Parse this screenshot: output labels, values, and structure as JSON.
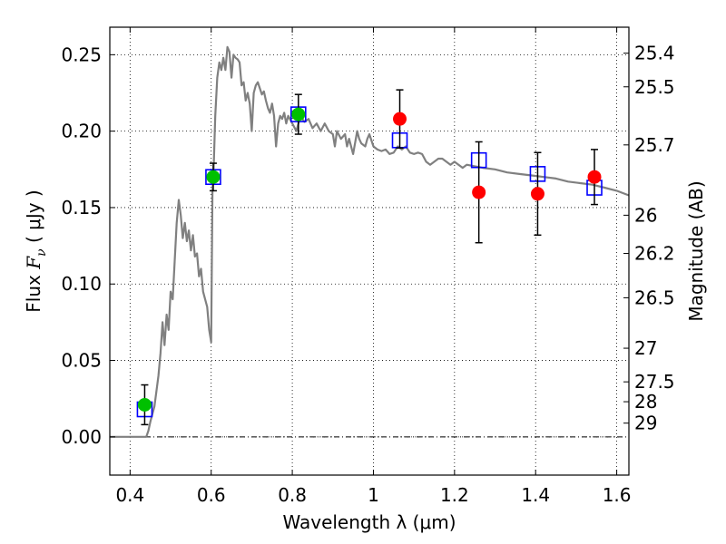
{
  "chart_data": {
    "type": "scatter",
    "xlabel": "Wavelength  λ (μm)",
    "ylabel_left": "Flux  F_ν  ( μJy )",
    "ylabel_left_parts": {
      "prefix": "Flux  ",
      "symbol": "F",
      "subscript": "ν",
      "units": "  ( μJy )"
    },
    "ylabel_right": "Magnitude (AB)",
    "xlim": [
      0.35,
      1.63
    ],
    "ylim": [
      -0.025,
      0.268
    ],
    "x_ticks": [
      "0.4",
      "0.6",
      "0.8",
      "1",
      "1.2",
      "1.4",
      "1.6"
    ],
    "x_tick_values": [
      0.4,
      0.6,
      0.8,
      1.0,
      1.2,
      1.4,
      1.6
    ],
    "y_ticks": [
      "0.00",
      "0.05",
      "0.10",
      "0.15",
      "0.20",
      "0.25"
    ],
    "y_tick_values": [
      0.0,
      0.05,
      0.1,
      0.15,
      0.2,
      0.25
    ],
    "right_axis_ticks": [
      {
        "label": "25.4",
        "flux": 0.251
      },
      {
        "label": "25.5",
        "flux": 0.229
      },
      {
        "label": "25.7",
        "flux": 0.191
      },
      {
        "label": "26",
        "flux": 0.145
      },
      {
        "label": "26.2",
        "flux": 0.12
      },
      {
        "label": "26.5",
        "flux": 0.091
      },
      {
        "label": "27",
        "flux": 0.058
      },
      {
        "label": "27.5",
        "flux": 0.036
      },
      {
        "label": "28",
        "flux": 0.023
      },
      {
        "label": "29",
        "flux": 0.009
      }
    ],
    "grid": true,
    "zero_line": true,
    "series": [
      {
        "kind": "line",
        "color": "#808080",
        "points": [
          [
            0.35,
            0.0
          ],
          [
            0.44,
            0.0
          ],
          [
            0.445,
            0.004
          ],
          [
            0.45,
            0.01
          ],
          [
            0.46,
            0.02
          ],
          [
            0.47,
            0.04
          ],
          [
            0.475,
            0.055
          ],
          [
            0.48,
            0.075
          ],
          [
            0.485,
            0.06
          ],
          [
            0.49,
            0.08
          ],
          [
            0.495,
            0.07
          ],
          [
            0.5,
            0.095
          ],
          [
            0.505,
            0.09
          ],
          [
            0.51,
            0.115
          ],
          [
            0.515,
            0.14
          ],
          [
            0.52,
            0.155
          ],
          [
            0.525,
            0.145
          ],
          [
            0.53,
            0.13
          ],
          [
            0.535,
            0.14
          ],
          [
            0.54,
            0.128
          ],
          [
            0.545,
            0.135
          ],
          [
            0.55,
            0.122
          ],
          [
            0.555,
            0.132
          ],
          [
            0.56,
            0.118
          ],
          [
            0.565,
            0.12
          ],
          [
            0.57,
            0.105
          ],
          [
            0.575,
            0.11
          ],
          [
            0.58,
            0.095
          ],
          [
            0.59,
            0.085
          ],
          [
            0.595,
            0.07
          ],
          [
            0.6,
            0.062
          ],
          [
            0.603,
            0.16
          ],
          [
            0.606,
            0.175
          ],
          [
            0.61,
            0.21
          ],
          [
            0.615,
            0.235
          ],
          [
            0.62,
            0.245
          ],
          [
            0.625,
            0.24
          ],
          [
            0.63,
            0.248
          ],
          [
            0.635,
            0.24
          ],
          [
            0.64,
            0.255
          ],
          [
            0.645,
            0.252
          ],
          [
            0.65,
            0.235
          ],
          [
            0.655,
            0.25
          ],
          [
            0.66,
            0.248
          ],
          [
            0.665,
            0.247
          ],
          [
            0.67,
            0.245
          ],
          [
            0.675,
            0.23
          ],
          [
            0.68,
            0.232
          ],
          [
            0.685,
            0.22
          ],
          [
            0.69,
            0.225
          ],
          [
            0.695,
            0.218
          ],
          [
            0.7,
            0.2
          ],
          [
            0.705,
            0.225
          ],
          [
            0.71,
            0.23
          ],
          [
            0.715,
            0.232
          ],
          [
            0.72,
            0.228
          ],
          [
            0.725,
            0.224
          ],
          [
            0.73,
            0.226
          ],
          [
            0.735,
            0.22
          ],
          [
            0.74,
            0.215
          ],
          [
            0.745,
            0.212
          ],
          [
            0.75,
            0.218
          ],
          [
            0.755,
            0.21
          ],
          [
            0.76,
            0.19
          ],
          [
            0.765,
            0.205
          ],
          [
            0.77,
            0.21
          ],
          [
            0.775,
            0.208
          ],
          [
            0.78,
            0.212
          ],
          [
            0.785,
            0.205
          ],
          [
            0.79,
            0.21
          ],
          [
            0.8,
            0.205
          ],
          [
            0.81,
            0.2
          ],
          [
            0.82,
            0.21
          ],
          [
            0.83,
            0.206
          ],
          [
            0.84,
            0.208
          ],
          [
            0.85,
            0.202
          ],
          [
            0.86,
            0.205
          ],
          [
            0.87,
            0.2
          ],
          [
            0.88,
            0.205
          ],
          [
            0.89,
            0.2
          ],
          [
            0.9,
            0.198
          ],
          [
            0.905,
            0.19
          ],
          [
            0.91,
            0.2
          ],
          [
            0.92,
            0.195
          ],
          [
            0.93,
            0.198
          ],
          [
            0.935,
            0.19
          ],
          [
            0.94,
            0.195
          ],
          [
            0.95,
            0.185
          ],
          [
            0.96,
            0.2
          ],
          [
            0.965,
            0.195
          ],
          [
            0.97,
            0.192
          ],
          [
            0.98,
            0.19
          ],
          [
            0.985,
            0.195
          ],
          [
            0.99,
            0.198
          ],
          [
            1.0,
            0.19
          ],
          [
            1.01,
            0.188
          ],
          [
            1.02,
            0.187
          ],
          [
            1.03,
            0.188
          ],
          [
            1.04,
            0.185
          ],
          [
            1.05,
            0.186
          ],
          [
            1.06,
            0.19
          ],
          [
            1.07,
            0.188
          ],
          [
            1.08,
            0.19
          ],
          [
            1.09,
            0.186
          ],
          [
            1.1,
            0.185
          ],
          [
            1.11,
            0.186
          ],
          [
            1.12,
            0.185
          ],
          [
            1.13,
            0.18
          ],
          [
            1.14,
            0.178
          ],
          [
            1.15,
            0.18
          ],
          [
            1.16,
            0.182
          ],
          [
            1.17,
            0.182
          ],
          [
            1.18,
            0.18
          ],
          [
            1.19,
            0.178
          ],
          [
            1.2,
            0.18
          ],
          [
            1.21,
            0.178
          ],
          [
            1.22,
            0.176
          ],
          [
            1.23,
            0.178
          ],
          [
            1.25,
            0.177
          ],
          [
            1.27,
            0.176
          ],
          [
            1.3,
            0.175
          ],
          [
            1.33,
            0.173
          ],
          [
            1.36,
            0.172
          ],
          [
            1.39,
            0.171
          ],
          [
            1.42,
            0.17
          ],
          [
            1.45,
            0.169
          ],
          [
            1.48,
            0.167
          ],
          [
            1.51,
            0.166
          ],
          [
            1.54,
            0.165
          ],
          [
            1.57,
            0.163
          ],
          [
            1.6,
            0.161
          ],
          [
            1.63,
            0.158
          ]
        ]
      },
      {
        "kind": "points",
        "color": "#0000ff",
        "marker": "open-square",
        "points": [
          [
            0.436,
            0.018
          ],
          [
            0.605,
            0.17
          ],
          [
            0.815,
            0.211
          ],
          [
            1.065,
            0.194
          ],
          [
            1.26,
            0.181
          ],
          [
            1.405,
            0.172
          ],
          [
            1.545,
            0.163
          ]
        ]
      },
      {
        "kind": "points",
        "color": "#00c000",
        "marker": "filled-circle",
        "points": [
          [
            0.436,
            0.021,
            0.013
          ],
          [
            0.605,
            0.17,
            0.009
          ],
          [
            0.815,
            0.211,
            0.013
          ]
        ]
      },
      {
        "kind": "points",
        "color": "#ff0000",
        "marker": "filled-circle",
        "points": [
          [
            1.065,
            0.208,
            0.019
          ],
          [
            1.26,
            0.16,
            0.033
          ],
          [
            1.405,
            0.159,
            0.027
          ],
          [
            1.545,
            0.17,
            0.018
          ]
        ]
      }
    ]
  }
}
